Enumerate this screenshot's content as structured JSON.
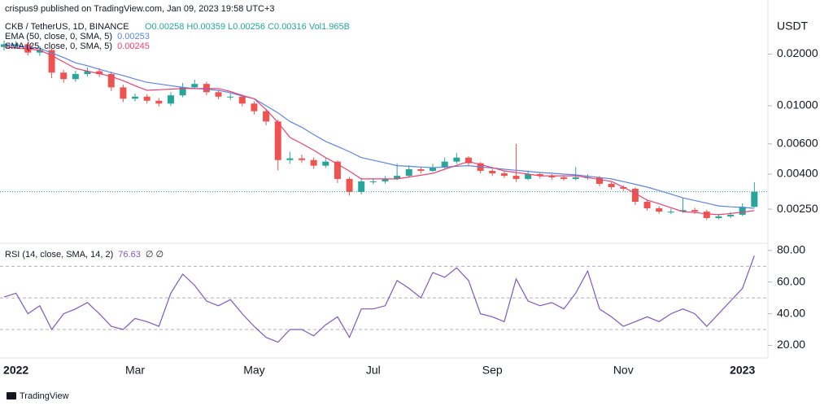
{
  "header": {
    "published": "crispus9 published on TradingView.com, Jan 09, 2023 19:58 UTC+3",
    "footer": "TradingView"
  },
  "chart_data": [
    {
      "type": "candlestick",
      "symbol": "CKB / TetherUS, 1D, BINANCE",
      "ohlc_text": "O0.00258 H0.00359 L0.00256 C0.00316 Vol1.965B",
      "axis_label": "USDT",
      "log_scale": true,
      "up_color": "#26a69a",
      "down_color": "#ef5350",
      "ylim": [
        0.0016,
        0.0413
      ],
      "yticks": [
        {
          "value": 0.02,
          "label": "0.02000"
        },
        {
          "value": 0.01,
          "label": "0.01000"
        },
        {
          "value": 0.006,
          "label": "0.00600"
        },
        {
          "value": 0.004,
          "label": "0.00400"
        },
        {
          "value": 0.0025,
          "label": "0.00250"
        }
      ],
      "categories": [
        null,
        "2022",
        null,
        null,
        null,
        null,
        null,
        null,
        null,
        null,
        null,
        "Mar",
        null,
        null,
        null,
        null,
        null,
        null,
        null,
        null,
        null,
        "May",
        null,
        null,
        null,
        null,
        null,
        null,
        null,
        null,
        null,
        "Jul",
        null,
        null,
        null,
        null,
        null,
        null,
        null,
        null,
        null,
        "Sep",
        null,
        null,
        null,
        null,
        null,
        null,
        null,
        null,
        null,
        null,
        "Nov",
        null,
        null,
        null,
        null,
        null,
        null,
        null,
        null,
        null,
        "2023",
        null
      ],
      "open": [
        0.022,
        0.0228,
        0.0228,
        0.0204,
        0.0211,
        0.0156,
        0.0143,
        0.0153,
        0.0159,
        0.0153,
        0.0128,
        0.011,
        0.0113,
        0.0107,
        0.0103,
        0.0115,
        0.0128,
        0.0134,
        0.012,
        0.0113,
        0.0113,
        0.0103,
        0.0093,
        0.0081,
        0.00483,
        0.00494,
        0.00483,
        0.00448,
        0.00473,
        0.00375,
        0.00315,
        0.00363,
        0.00363,
        0.00375,
        0.00391,
        0.00427,
        0.00418,
        0.00436,
        0.00473,
        0.00499,
        0.00463,
        0.00418,
        0.00404,
        0.00391,
        0.00375,
        0.004,
        0.00391,
        0.00383,
        0.00375,
        0.00383,
        0.00383,
        0.00351,
        0.00336,
        0.00329,
        0.00276,
        0.00253,
        0.00242,
        0.00242,
        0.00247,
        0.00242,
        0.00222,
        0.00227,
        0.00232,
        0.00258
      ],
      "high": [
        0.024,
        0.0238,
        0.0236,
        0.0222,
        0.0215,
        0.0162,
        0.016,
        0.0167,
        0.0166,
        0.0158,
        0.0133,
        0.0118,
        0.0117,
        0.0111,
        0.012,
        0.0136,
        0.0142,
        0.0138,
        0.0124,
        0.0118,
        0.0116,
        0.0106,
        0.0096,
        0.0083,
        0.0054,
        0.0052,
        0.005,
        0.00495,
        0.0048,
        0.00385,
        0.0038,
        0.0038,
        0.0039,
        0.0046,
        0.0045,
        0.0044,
        0.0046,
        0.005,
        0.0053,
        0.0051,
        0.0047,
        0.0043,
        0.0042,
        0.006,
        0.0042,
        0.0041,
        0.004,
        0.00395,
        0.0044,
        0.004,
        0.0039,
        0.0036,
        0.00345,
        0.00335,
        0.00285,
        0.0026,
        0.00252,
        0.0029,
        0.00255,
        0.00248,
        0.00235,
        0.0024,
        0.0027,
        0.00359
      ],
      "low": [
        0.0209,
        0.0216,
        0.0196,
        0.0195,
        0.0145,
        0.0136,
        0.0138,
        0.0148,
        0.0147,
        0.0122,
        0.0105,
        0.0106,
        0.0103,
        0.0099,
        0.01,
        0.0112,
        0.0125,
        0.0115,
        0.0109,
        0.0108,
        0.0099,
        0.0089,
        0.0077,
        0.0042,
        0.0046,
        0.00465,
        0.0043,
        0.00435,
        0.00355,
        0.003,
        0.00305,
        0.0035,
        0.00352,
        0.00368,
        0.0038,
        0.00405,
        0.0041,
        0.0043,
        0.0046,
        0.0045,
        0.00405,
        0.0039,
        0.0038,
        0.0036,
        0.00368,
        0.00378,
        0.00372,
        0.00365,
        0.00368,
        0.0037,
        0.0034,
        0.00325,
        0.00318,
        0.00265,
        0.00245,
        0.00235,
        0.00234,
        0.00238,
        0.00235,
        0.00216,
        0.00218,
        0.00222,
        0.00228,
        0.00256
      ],
      "close": [
        0.0228,
        0.0228,
        0.0204,
        0.0211,
        0.0156,
        0.0143,
        0.0153,
        0.0159,
        0.0153,
        0.0128,
        0.011,
        0.0113,
        0.0107,
        0.0103,
        0.0115,
        0.0128,
        0.0134,
        0.012,
        0.0113,
        0.0113,
        0.0103,
        0.0093,
        0.0081,
        0.00483,
        0.00494,
        0.00483,
        0.00448,
        0.00473,
        0.00375,
        0.00315,
        0.00363,
        0.00363,
        0.00375,
        0.00391,
        0.00427,
        0.00418,
        0.00436,
        0.00473,
        0.00499,
        0.00463,
        0.00418,
        0.00404,
        0.00391,
        0.00375,
        0.004,
        0.00391,
        0.00383,
        0.00375,
        0.00383,
        0.00383,
        0.00351,
        0.00336,
        0.00329,
        0.00276,
        0.00253,
        0.00242,
        0.00242,
        0.00247,
        0.00242,
        0.00222,
        0.00227,
        0.00232,
        0.00258,
        0.00316
      ],
      "series": [
        {
          "name": "EMA (50, close, 0, SMA, 5)",
          "color": "#5b84e8",
          "values": [
            0.0228,
            0.0224,
            0.022,
            0.0216,
            0.0203,
            0.0191,
            0.0178,
            0.0171,
            0.0163,
            0.0156,
            0.015,
            0.0143,
            0.0137,
            0.0134,
            0.0131,
            0.0128,
            0.0126,
            0.0125,
            0.0123,
            0.0119,
            0.0114,
            0.011,
            0.01,
            0.0091,
            0.0081,
            0.0075,
            0.0068,
            0.0062,
            0.0058,
            0.0054,
            0.00499,
            0.00482,
            0.00465,
            0.00448,
            0.00444,
            0.0044,
            0.00436,
            0.0044,
            0.00444,
            0.00448,
            0.00441,
            0.00434,
            0.00427,
            0.00421,
            0.00415,
            0.00409,
            0.00405,
            0.004,
            0.00396,
            0.00389,
            0.00382,
            0.00375,
            0.00362,
            0.00349,
            0.00336,
            0.00321,
            0.00306,
            0.00291,
            0.00281,
            0.00271,
            0.00261,
            0.00258,
            0.00256,
            0.00253
          ]
        },
        {
          "name": "SMA (25, close, 0, SMA, 5)",
          "color": "#f0406e",
          "values": [
            0.022,
            0.0217,
            0.0214,
            0.0211,
            0.0196,
            0.018,
            0.0165,
            0.0159,
            0.0154,
            0.0148,
            0.014,
            0.0131,
            0.0123,
            0.0124,
            0.0125,
            0.0126,
            0.0126,
            0.0126,
            0.0126,
            0.0121,
            0.0115,
            0.011,
            0.0095,
            0.008,
            0.00654,
            0.00602,
            0.00551,
            0.00499,
            0.00458,
            0.00416,
            0.00375,
            0.00375,
            0.00375,
            0.00375,
            0.00385,
            0.00394,
            0.00404,
            0.00427,
            0.0045,
            0.00473,
            0.00455,
            0.00436,
            0.00418,
            0.00409,
            0.004,
            0.00391,
            0.00391,
            0.00391,
            0.00391,
            0.00382,
            0.00372,
            0.00363,
            0.00336,
            0.00309,
            0.00282,
            0.00269,
            0.00255,
            0.00242,
            0.00239,
            0.00235,
            0.00232,
            0.00236,
            0.0024,
            0.00245
          ]
        }
      ]
    },
    {
      "type": "line",
      "legend_suffix": "∅ ∅",
      "ylim": [
        12,
        84
      ],
      "yticks": [
        {
          "value": 80,
          "label": "80.00"
        },
        {
          "value": 60,
          "label": "60.00"
        },
        {
          "value": 40,
          "label": "40.00"
        },
        {
          "value": 20,
          "label": "20.00"
        }
      ],
      "levels": [
        70,
        50,
        30
      ],
      "series": [
        {
          "name": "RSI (14, close, SMA, 14, 2)",
          "color": "#7e57c2",
          "values": [
            50.5,
            53,
            40,
            45,
            30,
            40,
            43,
            47,
            40,
            32,
            30,
            37,
            35,
            32,
            53,
            65,
            58,
            48,
            45,
            49,
            40,
            32,
            25,
            22,
            30,
            30,
            26,
            33,
            38,
            25,
            43,
            43,
            45,
            61,
            56,
            50,
            66,
            63,
            69,
            61,
            40,
            38,
            35,
            62,
            48,
            45,
            47,
            43,
            53,
            67,
            43,
            38,
            32,
            35,
            38,
            35,
            40,
            43,
            40,
            32,
            40,
            48,
            56,
            76.63
          ]
        }
      ]
    }
  ]
}
